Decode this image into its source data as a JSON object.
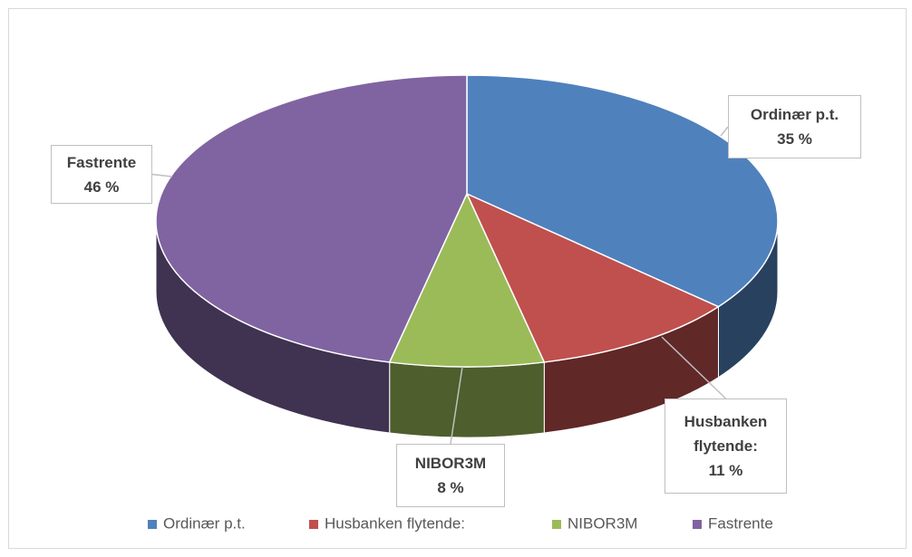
{
  "chart_data": {
    "type": "pie",
    "three_d": true,
    "categories": [
      "Ordinær p.t.",
      "Husbanken flytende:",
      "NIBOR3M",
      "Fastrente"
    ],
    "values": [
      35,
      11,
      8,
      46
    ],
    "value_labels": [
      "35 %",
      "11 %",
      "8 %",
      "46 %"
    ],
    "colors": [
      "#4f81bd",
      "#c0504d",
      "#9bbb59",
      "#8064a2"
    ],
    "legend": "bottom"
  }
}
